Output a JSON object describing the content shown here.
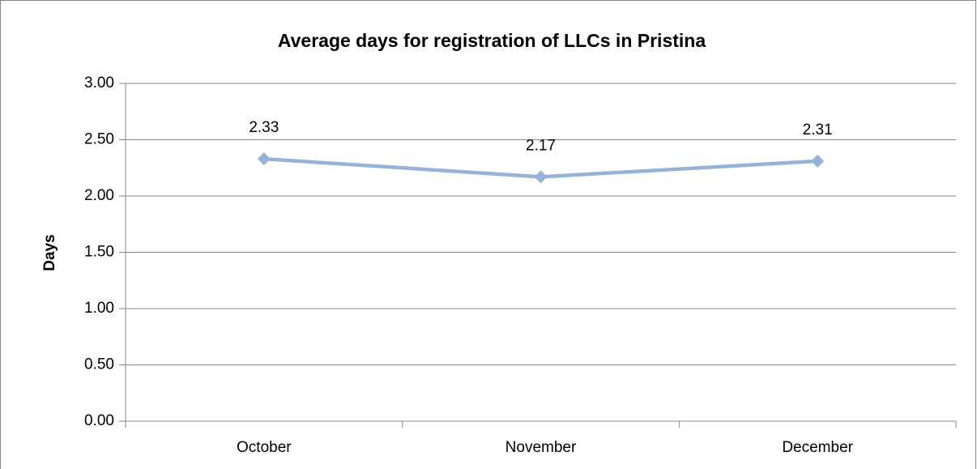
{
  "chart_data": {
    "type": "line",
    "title": "Average days for registration of LLCs in Pristina",
    "y_label": "Days",
    "categories": [
      "October",
      "November",
      "December"
    ],
    "values": [
      2.33,
      2.17,
      2.31
    ],
    "color": "#95b3d7",
    "ylim": [
      0,
      3
    ],
    "yticks": [
      {
        "value": 0,
        "label": "0.00"
      },
      {
        "value": 0.5,
        "label": "0.50"
      },
      {
        "value": 1,
        "label": "1.00"
      },
      {
        "value": 1.5,
        "label": "1.50"
      },
      {
        "value": 2,
        "label": "2.00"
      },
      {
        "value": 2.5,
        "label": "2.50"
      },
      {
        "value": 3,
        "label": "3.00"
      }
    ],
    "grid": true
  }
}
